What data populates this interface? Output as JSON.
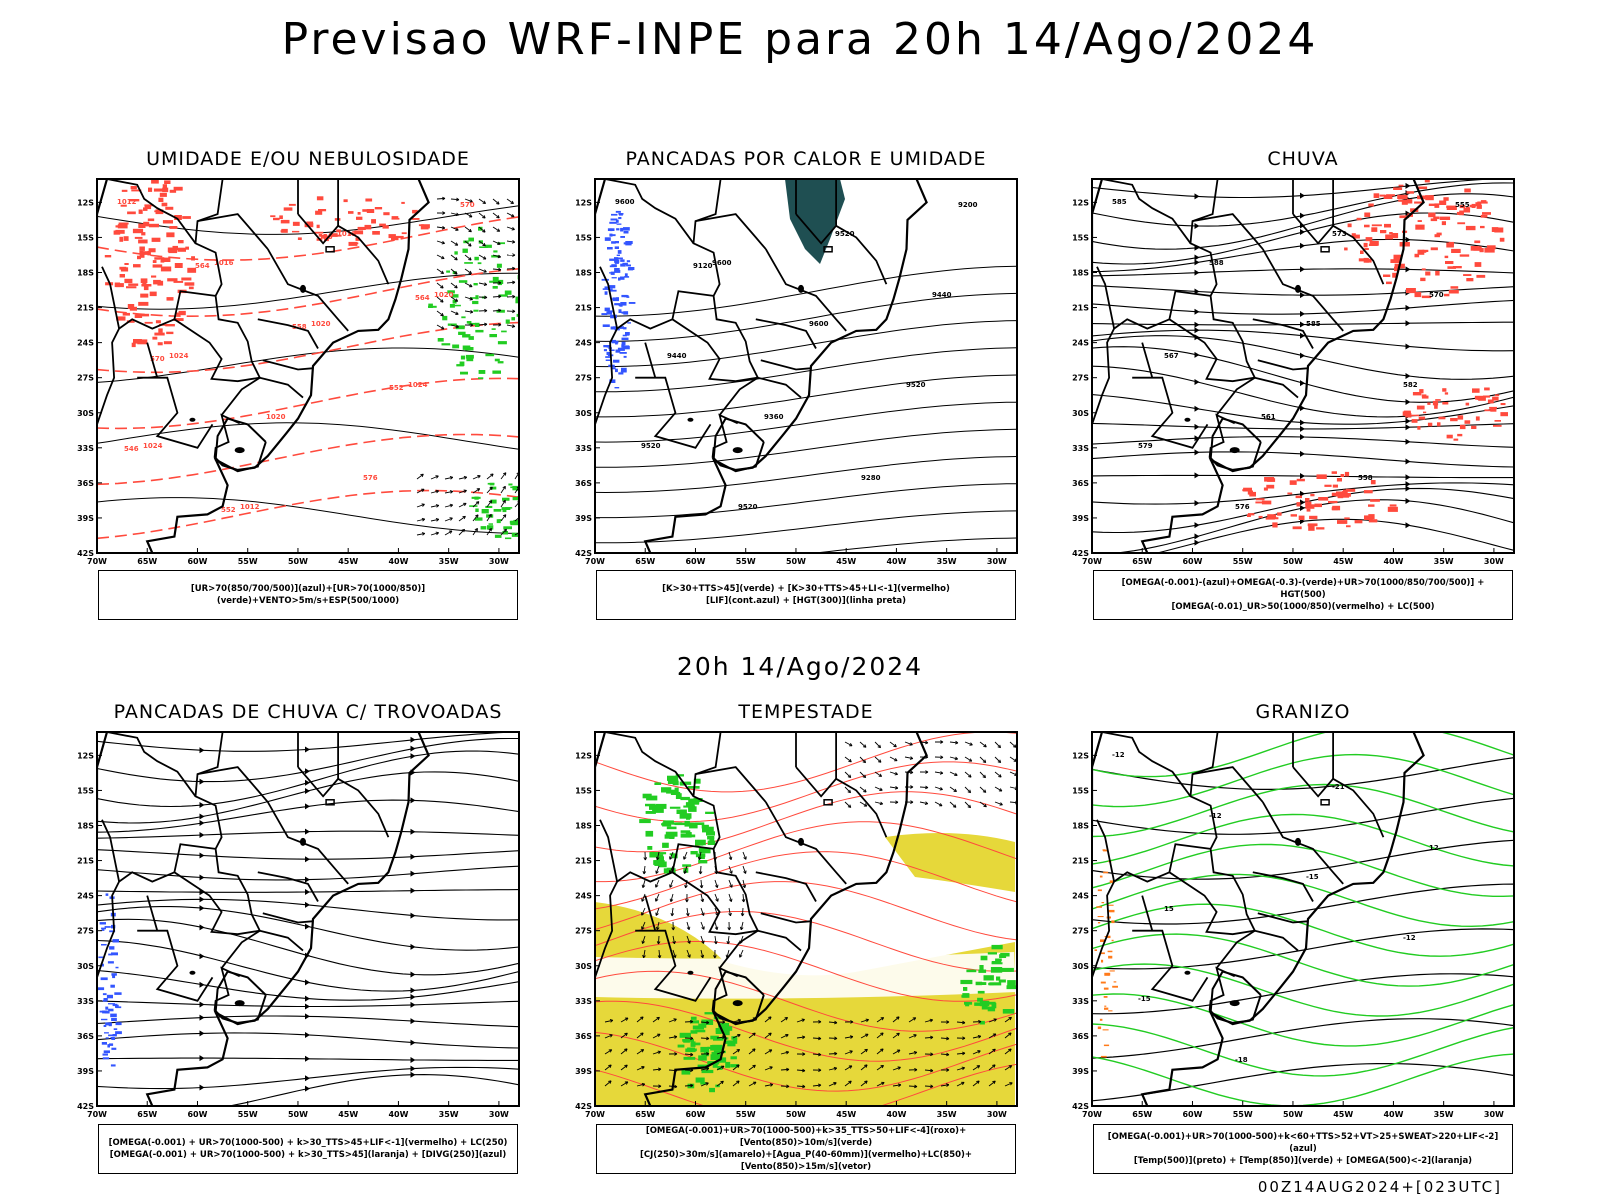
{
  "title": "Previsao WRF-INPE  para 20h 14/Ago/2024",
  "mid_date": "20h 14/Ago/2024",
  "run_stamp": "00Z14AUG2024+[023UTC]",
  "axes": {
    "lat_ticks": [
      "12S",
      "15S",
      "18S",
      "21S",
      "24S",
      "27S",
      "30S",
      "33S",
      "36S",
      "39S",
      "42S"
    ],
    "lon_ticks": [
      "70W",
      "65W",
      "60W",
      "55W",
      "50W",
      "45W",
      "40W",
      "35W",
      "30W"
    ]
  },
  "colors": {
    "humidity_red": "#ff4a3d",
    "green": "#22cc22",
    "blue": "#3355ff",
    "teal": "#1f4f52",
    "yellow": "#e6d83a",
    "orange": "#ff7a1a"
  },
  "panels": [
    {
      "title": "UMIDADE E/OU NEBULOSIDADE",
      "legend": [
        "[UR>70(850/700/500)](azul)+[UR>70(1000/850)](verde)+VENTO>5m/s+ESP(500/1000)"
      ],
      "contour_labels": [
        "1012",
        "1016",
        "1020",
        "1024",
        "1024",
        "1012",
        "1012",
        "1020",
        "1024",
        "1020",
        "576",
        "570",
        "564",
        "558",
        "552",
        "546",
        "552",
        "558",
        "564",
        "570"
      ]
    },
    {
      "title": "PANCADAS POR CALOR E UMIDADE",
      "legend": [
        "[K>30+TTS>45](verde) + [K>30+TTS>45+LI<-1](vermelho)",
        "[LIF](cont.azul) + [HGT(300)](linha preta)"
      ],
      "contour_labels": [
        "9600",
        "9600",
        "9600",
        "9520",
        "9520",
        "9520",
        "9520",
        "9440",
        "9440",
        "9360",
        "9280",
        "9200",
        "9120"
      ]
    },
    {
      "title": "CHUVA",
      "legend": [
        "[OMEGA(-0.001)-(azul)+OMEGA(-0.3)-(verde)+UR>70(1000/850/700/500)] + HGT(500)",
        "[OMEGA(-0.01)_UR>50(1000/850)(vermelho) + LC(500)"
      ],
      "contour_labels": [
        "585",
        "588",
        "585",
        "582",
        "579",
        "576",
        "573",
        "570",
        "567",
        "561",
        "558",
        "555"
      ]
    },
    {
      "title": "PANCADAS DE CHUVA C/ TROVOADAS",
      "legend": [
        "[OMEGA(-0.001) + UR>70(1000-500) + k>30_TTS>45+LIF<-1](vermelho) + LC(250)",
        "[OMEGA(-0.001) + UR>70(1000-500) + k>30_TTS>45](laranja) + [DIVG(250)](azul)"
      ],
      "contour_labels": []
    },
    {
      "title": "TEMPESTADE",
      "legend": [
        "[OMEGA(-0.001)+UR>70(1000-500)+k>35_TTS>50+LIF<-4](roxo)+[Vento(850)>10m/s](verde)",
        "[CJ(250)>30m/s](amarelo)+[Agua_P(40-60mm)](vermelho)+LC(850)+[Vento(850)>15m/s](vetor)"
      ],
      "contour_labels": []
    },
    {
      "title": "GRANIZO",
      "legend": [
        "[OMEGA(-0.001)+UR>70(1000-500)+k<60+TTS>52+VT>25+SWEAT>220+LIF<-2](azul)",
        "[Temp(500)](preto) + [Temp(850)](verde) + [OMEGA(500)<-2](laranja)"
      ],
      "contour_labels": [
        "-12",
        "-12",
        "-15",
        "-12",
        "-15",
        "-18",
        "-21",
        "12",
        "15"
      ]
    }
  ]
}
